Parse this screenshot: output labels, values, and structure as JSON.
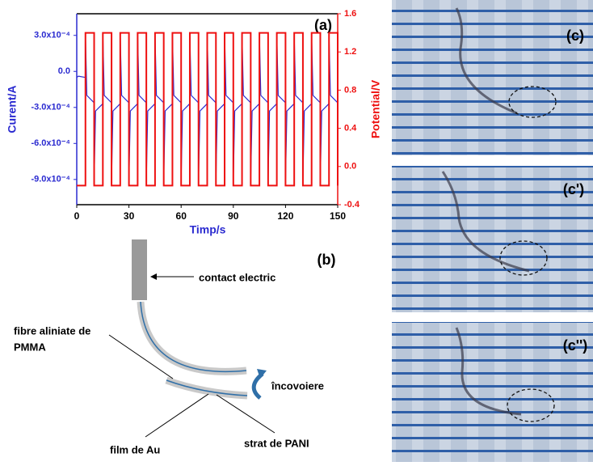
{
  "chart_data": {
    "type": "line",
    "annotation": "(a)",
    "x_label": "Timp/s",
    "y_label": "Curent/A",
    "y2_label": "Potential/V",
    "xlim": [
      0,
      150
    ],
    "xticks": [
      0,
      30,
      60,
      90,
      120,
      150
    ],
    "ylim": [
      -0.00111,
      0.00048
    ],
    "yticks": [
      {
        "value": 0.0003,
        "label": "3.0x10⁻⁴"
      },
      {
        "value": 0,
        "label": "0.0"
      },
      {
        "value": -0.0003,
        "label": "-3.0x10⁻⁴"
      },
      {
        "value": -0.0006,
        "label": "-6.0x10⁻⁴"
      },
      {
        "value": -0.0009,
        "label": "-9.0x10⁻⁴"
      }
    ],
    "y2lim": [
      -0.4,
      1.6
    ],
    "y2ticks": [
      -0.4,
      {
        "value": 0,
        "label": "0.0"
      },
      0.4,
      0.8,
      1.2,
      1.6
    ],
    "series": [
      {
        "color": "#2a2ad0",
        "x": [
          0,
          1,
          4.9,
          5,
          5.8,
          9.9,
          10,
          10.8,
          14.9,
          15,
          15.8,
          19.9,
          20,
          20.8,
          24.9,
          25,
          25.8,
          29.9,
          30,
          30.8,
          34.9,
          35,
          35.8,
          39.9,
          40,
          40.8,
          44.9,
          45,
          45.8,
          49.9,
          50,
          50.8,
          54.9,
          55,
          55.8,
          59.9,
          60,
          60.8,
          64.9,
          65,
          65.8,
          69.9,
          70,
          70.8,
          74.9,
          75,
          75.8,
          79.9,
          80,
          80.8,
          84.9,
          85,
          85.8,
          89.9,
          90,
          90.8,
          94.9,
          95,
          95.8,
          99.9,
          100,
          100.8,
          104.9,
          105,
          105.8,
          109.9,
          110,
          110.8,
          114.9,
          115,
          115.8,
          119.9,
          120,
          120.8,
          124.9,
          125,
          125.8,
          129.9,
          130,
          130.8,
          134.9,
          135,
          135.8,
          139.9,
          140,
          140.8,
          144.9,
          145,
          145.8,
          149.9
        ],
        "values": [
          -5e-05,
          -4e-05,
          -5e-05,
          0.0003,
          -0.0002,
          -0.00026,
          -0.0009,
          -0.00033,
          -0.00027,
          0.0003,
          -0.0002,
          -0.00026,
          -0.0009,
          -0.00033,
          -0.00027,
          0.0003,
          -0.0002,
          -0.00026,
          -0.0009,
          -0.00033,
          -0.00027,
          0.0003,
          -0.0002,
          -0.00026,
          -0.0009,
          -0.00033,
          -0.00027,
          0.0003,
          -0.0002,
          -0.00026,
          -0.0009,
          -0.00033,
          -0.00027,
          0.0003,
          -0.0002,
          -0.00026,
          -0.0009,
          -0.00033,
          -0.00027,
          0.0003,
          -0.0002,
          -0.00026,
          -0.0009,
          -0.00033,
          -0.00027,
          0.0003,
          -0.0002,
          -0.00026,
          -0.0009,
          -0.00033,
          -0.00027,
          0.0003,
          -0.0002,
          -0.00026,
          -0.0009,
          -0.00033,
          -0.00027,
          0.0003,
          -0.0002,
          -0.00026,
          -0.0009,
          -0.00033,
          -0.00027,
          0.0003,
          -0.0002,
          -0.00026,
          -0.0009,
          -0.00033,
          -0.00027,
          0.0003,
          -0.0002,
          -0.00026,
          -0.0009,
          -0.00033,
          -0.00027,
          0.0003,
          -0.0002,
          -0.00026,
          -0.0009,
          -0.00033,
          -0.00027,
          0.0003,
          -0.0002,
          -0.00026,
          -0.0009,
          -0.00033,
          -0.00027,
          0.0003,
          -0.0002,
          -0.00026
        ]
      },
      {
        "color": "#ee1111",
        "axis": "y2",
        "x": [
          0,
          5,
          5,
          10,
          10,
          15,
          15,
          20,
          20,
          25,
          25,
          30,
          30,
          35,
          35,
          40,
          40,
          45,
          45,
          50,
          50,
          55,
          55,
          60,
          60,
          65,
          65,
          70,
          70,
          75,
          75,
          80,
          80,
          85,
          85,
          90,
          90,
          95,
          95,
          100,
          100,
          105,
          105,
          110,
          110,
          115,
          115,
          120,
          120,
          125,
          125,
          130,
          130,
          135,
          135,
          140,
          140,
          145,
          145,
          150,
          150
        ],
        "values": [
          -0.2,
          -0.2,
          1.4,
          1.4,
          -0.2,
          -0.2,
          1.4,
          1.4,
          -0.2,
          -0.2,
          1.4,
          1.4,
          -0.2,
          -0.2,
          1.4,
          1.4,
          -0.2,
          -0.2,
          1.4,
          1.4,
          -0.2,
          -0.2,
          1.4,
          1.4,
          -0.2,
          -0.2,
          1.4,
          1.4,
          -0.2,
          -0.2,
          1.4,
          1.4,
          -0.2,
          -0.2,
          1.4,
          1.4,
          -0.2,
          -0.2,
          1.4,
          1.4,
          -0.2,
          -0.2,
          1.4,
          1.4,
          -0.2,
          -0.2,
          1.4,
          1.4,
          -0.2,
          -0.2,
          1.4,
          1.4,
          -0.2,
          -0.2,
          1.4,
          1.4,
          -0.2,
          -0.2,
          1.4,
          1.4,
          -0.2
        ]
      }
    ]
  },
  "diagram": {
    "label": "(b)",
    "contact": "contact electric",
    "fiber": [
      "fibre aliniate de",
      "PMMA"
    ],
    "bending": "încovoiere",
    "pani": "strat de PANI",
    "au": "film de Au"
  },
  "photos": {
    "labels": [
      "(c)",
      "(c')",
      "(c'')"
    ]
  }
}
